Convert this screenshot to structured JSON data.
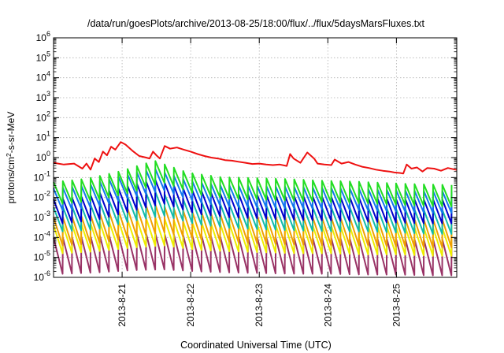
{
  "chart_data": {
    "type": "line",
    "title": "/data/run/goesPlots/archive/2013-08-25/18:00/flux/../flux/5daysMarsFluxes.txt",
    "xlabel": "Coordinated Universal Time (UTC)",
    "ylabel": {
      "pre": "protons/cm",
      "sup": "2",
      "post": "-s-sr-MeV"
    },
    "yscale": "log",
    "ylim": [
      1e-06,
      1000000.0
    ],
    "xlim": [
      0,
      5.88
    ],
    "grid": true,
    "legend": "none",
    "x_ticks": [
      {
        "label": "2013-8-21",
        "day": 1
      },
      {
        "label": "2013-8-22",
        "day": 2
      },
      {
        "label": "2013-8-23",
        "day": 3
      },
      {
        "label": "2013-8-24",
        "day": 4
      },
      {
        "label": "2013-8-25",
        "day": 5
      }
    ],
    "y_ticks": [
      {
        "base": "10",
        "exp": "-6",
        "value": 1e-06
      },
      {
        "base": "10",
        "exp": "-5",
        "value": 1e-05
      },
      {
        "base": "10",
        "exp": "-4",
        "value": 0.0001
      },
      {
        "base": "10",
        "exp": "-3",
        "value": 0.001
      },
      {
        "base": "10",
        "exp": "-2",
        "value": 0.01
      },
      {
        "base": "10",
        "exp": "-1",
        "value": 0.1
      },
      {
        "base": "10",
        "exp": "0",
        "value": 1
      },
      {
        "base": "10",
        "exp": "1",
        "value": 10
      },
      {
        "base": "10",
        "exp": "2",
        "value": 100
      },
      {
        "base": "10",
        "exp": "3",
        "value": 1000
      },
      {
        "base": "10",
        "exp": "4",
        "value": 10000
      },
      {
        "base": "10",
        "exp": "5",
        "value": 100000
      },
      {
        "base": "10",
        "exp": "6",
        "value": 1000000
      }
    ],
    "series": [
      {
        "color": "#ee1111",
        "points": [
          [
            0,
            0.55
          ],
          [
            0.15,
            0.45
          ],
          [
            0.3,
            0.5
          ],
          [
            0.42,
            0.28
          ],
          [
            0.48,
            0.5
          ],
          [
            0.54,
            0.25
          ],
          [
            0.6,
            0.9
          ],
          [
            0.66,
            0.6
          ],
          [
            0.72,
            2.0
          ],
          [
            0.78,
            1.3
          ],
          [
            0.84,
            3.5
          ],
          [
            0.9,
            2.5
          ],
          [
            0.98,
            6.0
          ],
          [
            1.05,
            4.5
          ],
          [
            1.15,
            2.2
          ],
          [
            1.25,
            1.2
          ],
          [
            1.35,
            1.0
          ],
          [
            1.4,
            0.9
          ],
          [
            1.45,
            2.0
          ],
          [
            1.5,
            1.3
          ],
          [
            1.55,
            0.9
          ],
          [
            1.62,
            3.8
          ],
          [
            1.7,
            2.8
          ],
          [
            1.8,
            3.2
          ],
          [
            1.9,
            2.5
          ],
          [
            2.0,
            2.0
          ],
          [
            2.1,
            1.5
          ],
          [
            2.2,
            1.2
          ],
          [
            2.3,
            1.0
          ],
          [
            2.4,
            0.9
          ],
          [
            2.5,
            0.75
          ],
          [
            2.6,
            0.7
          ],
          [
            2.7,
            0.62
          ],
          [
            2.8,
            0.55
          ],
          [
            2.9,
            0.48
          ],
          [
            3.0,
            0.5
          ],
          [
            3.1,
            0.45
          ],
          [
            3.2,
            0.42
          ],
          [
            3.3,
            0.45
          ],
          [
            3.4,
            0.38
          ],
          [
            3.45,
            1.5
          ],
          [
            3.5,
            0.9
          ],
          [
            3.6,
            0.55
          ],
          [
            3.7,
            1.8
          ],
          [
            3.8,
            0.9
          ],
          [
            3.85,
            0.5
          ],
          [
            3.95,
            0.45
          ],
          [
            4.05,
            0.42
          ],
          [
            4.1,
            0.8
          ],
          [
            4.2,
            0.5
          ],
          [
            4.3,
            0.6
          ],
          [
            4.4,
            0.45
          ],
          [
            4.5,
            0.35
          ],
          [
            4.6,
            0.3
          ],
          [
            4.7,
            0.25
          ],
          [
            4.8,
            0.22
          ],
          [
            4.9,
            0.2
          ],
          [
            4.97,
            0.18
          ],
          [
            5.05,
            0.17
          ],
          [
            5.1,
            0.16
          ],
          [
            5.15,
            0.45
          ],
          [
            5.22,
            0.28
          ],
          [
            5.3,
            0.32
          ],
          [
            5.38,
            0.2
          ],
          [
            5.45,
            0.3
          ],
          [
            5.55,
            0.28
          ],
          [
            5.65,
            0.22
          ],
          [
            5.75,
            0.3
          ],
          [
            5.88,
            0.24
          ]
        ]
      },
      {
        "color": "#22dd22",
        "base": [
          0.017,
          0.025,
          0.06,
          0.2,
          0.05,
          0.03,
          0.027,
          0.024,
          0.02,
          0.018,
          0.015,
          0.013,
          0.012
        ],
        "amp": 3.5
      },
      {
        "color": "#1177ee",
        "base": [
          0.008,
          0.012,
          0.035,
          0.08,
          0.02,
          0.012,
          0.011,
          0.01,
          0.009,
          0.008,
          0.007,
          0.006,
          0.006
        ],
        "amp": 3.5
      },
      {
        "color": "#0000cc",
        "base": [
          0.002,
          0.003,
          0.008,
          0.02,
          0.006,
          0.004,
          0.0035,
          0.003,
          0.0028,
          0.0025,
          0.0022,
          0.002,
          0.002
        ],
        "amp": 4
      },
      {
        "color": "#11bbaa",
        "base": [
          0.0008,
          0.001,
          0.0025,
          0.005,
          0.0018,
          0.0012,
          0.001,
          0.0009,
          0.0008,
          0.0008,
          0.0007,
          0.0006,
          0.0006
        ],
        "amp": 4
      },
      {
        "color": "#f0a000",
        "base": [
          0.0002,
          0.00025,
          0.0005,
          0.0009,
          0.0004,
          0.0003,
          0.00025,
          0.00022,
          0.0002,
          0.0002,
          0.00018,
          0.00016,
          0.00016
        ],
        "amp": 5
      },
      {
        "color": "#eeee00",
        "base": [
          8e-05,
          0.0001,
          0.00015,
          0.0002,
          0.00012,
          0.0001,
          9e-05,
          8e-05,
          8e-05,
          7e-05,
          7e-05,
          6e-05,
          6e-05
        ],
        "amp": 5
      },
      {
        "color": "#993366",
        "base": [
          1.2e-05,
          1.4e-05,
          1.8e-05,
          2e-05,
          1.6e-05,
          1.4e-05,
          1.3e-05,
          1.2e-05,
          1.2e-05,
          1.1e-05,
          1.1e-05,
          1e-05,
          1e-05
        ],
        "amp": 8
      }
    ]
  }
}
